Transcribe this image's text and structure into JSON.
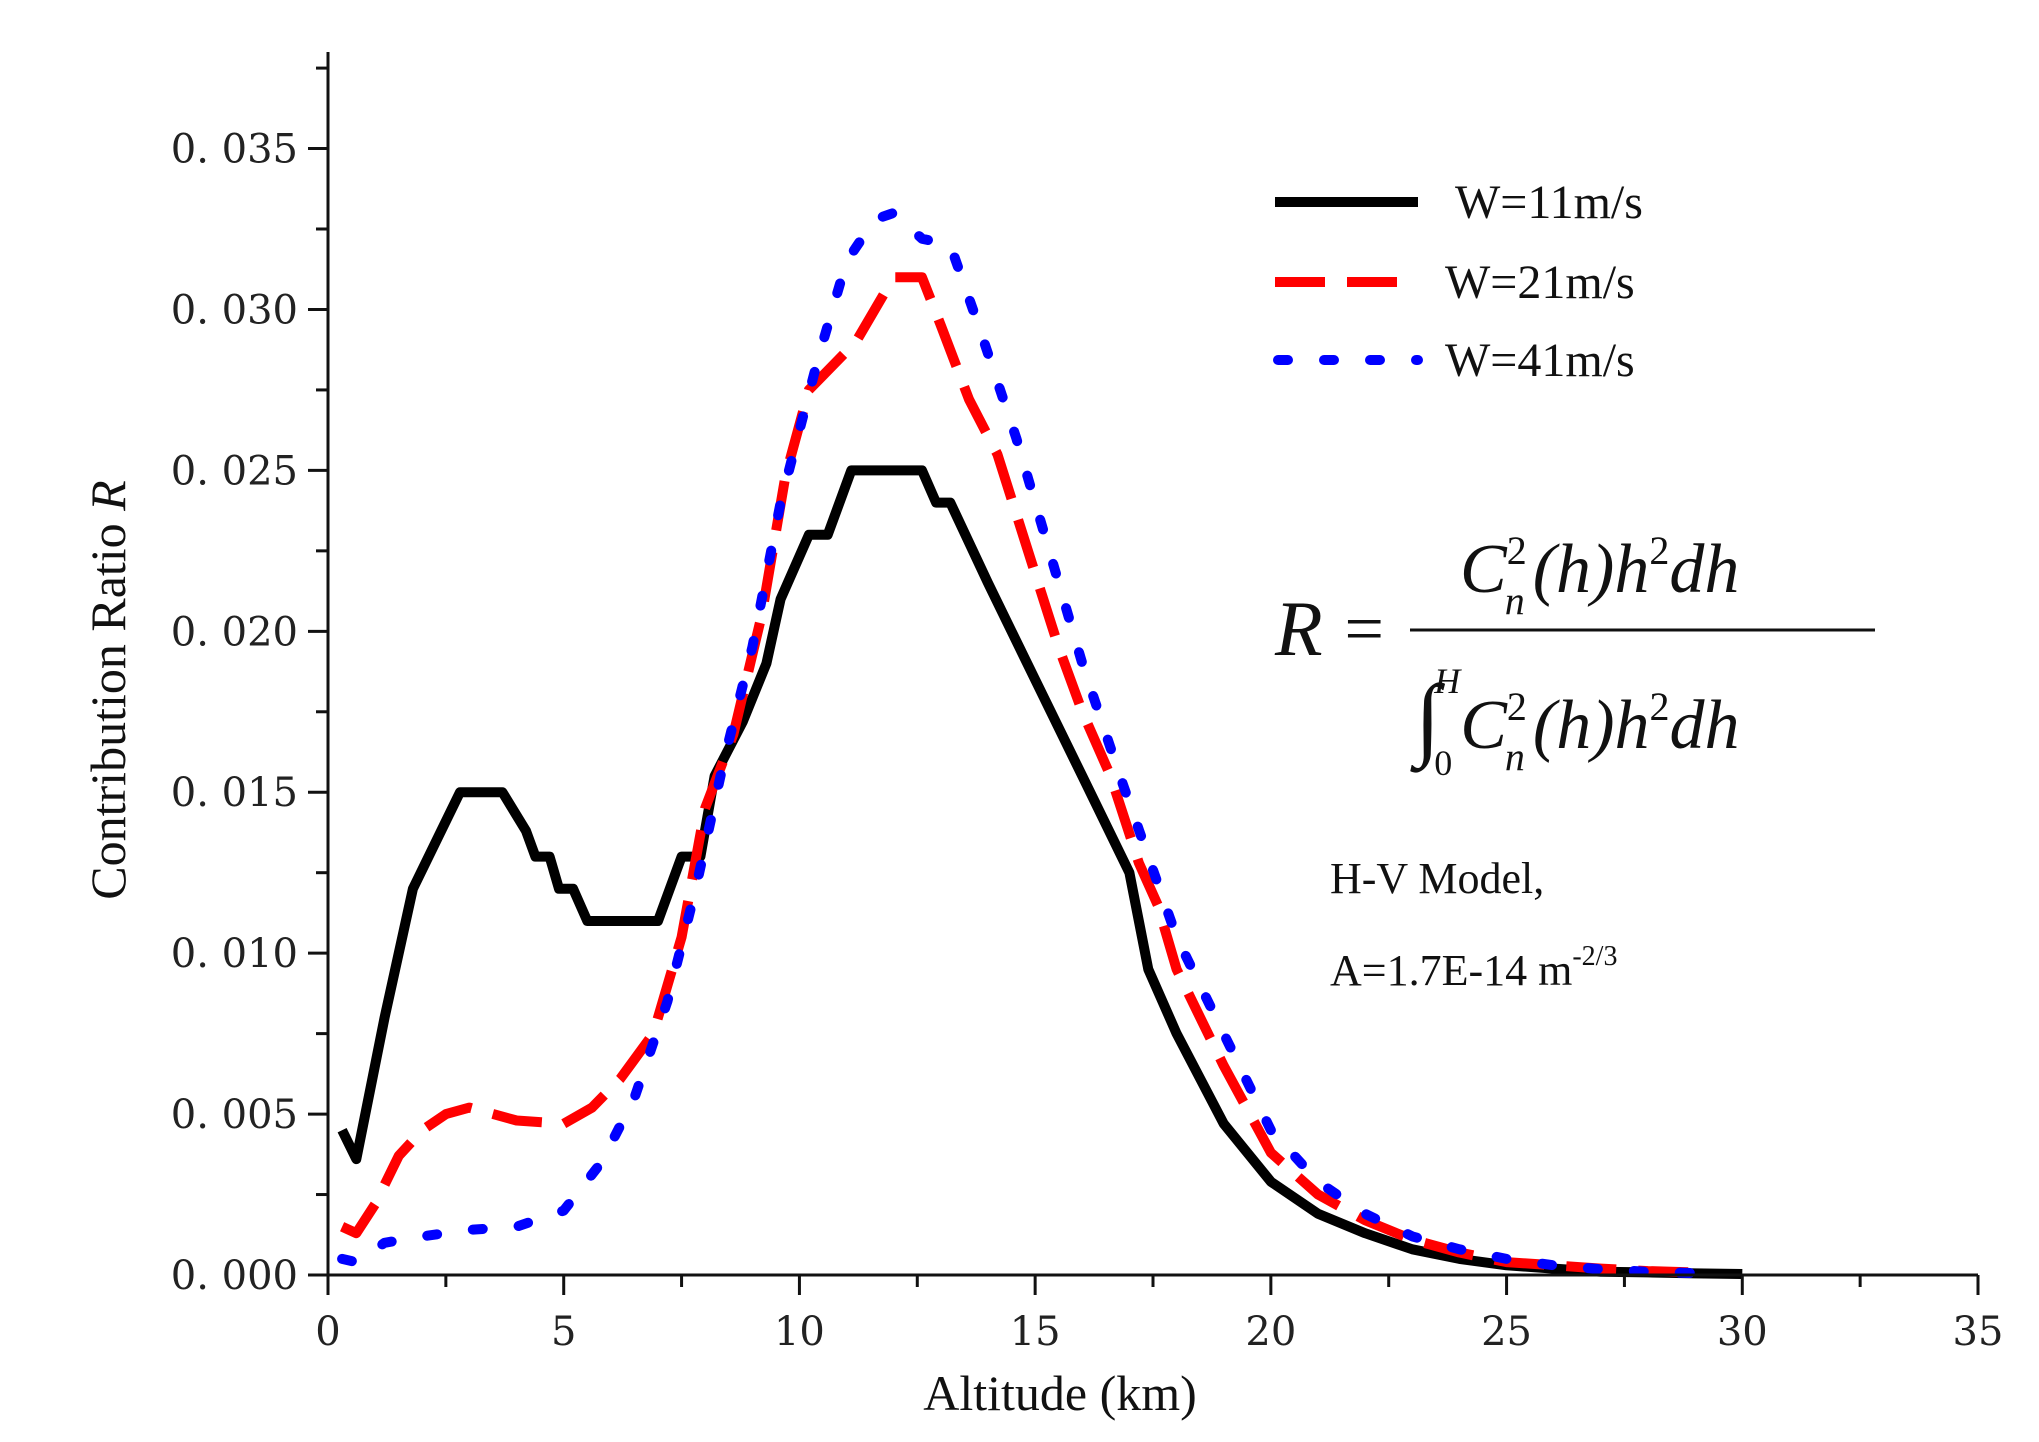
{
  "chart_data": {
    "type": "line",
    "title": "",
    "xlabel": "Altitude (km)",
    "ylabel": "Contribution Ratio ",
    "ylabel_var": "R",
    "xlim": [
      0,
      35
    ],
    "ylim": [
      0,
      0.038
    ],
    "x_ticks": [
      0,
      5,
      10,
      15,
      20,
      25,
      30,
      35
    ],
    "x_tick_labels": [
      "0",
      "5",
      "10",
      "15",
      "20",
      "25",
      "30",
      "35"
    ],
    "y_ticks": [
      0.0,
      0.005,
      0.01,
      0.015,
      0.02,
      0.025,
      0.03,
      0.035
    ],
    "y_tick_labels": [
      "0. 000",
      "0. 005",
      "0. 010",
      "0. 015",
      "0. 020",
      "0. 025",
      "0. 030",
      "0. 035"
    ],
    "grid": false,
    "legend_position": "top-right",
    "series": [
      {
        "name": "W=11m/s",
        "color": "#000000",
        "style": "solid",
        "points": [
          [
            0.3,
            0.0045
          ],
          [
            0.6,
            0.0036
          ],
          [
            1.2,
            0.008
          ],
          [
            1.8,
            0.012
          ],
          [
            2.4,
            0.0138
          ],
          [
            2.8,
            0.015
          ],
          [
            3.7,
            0.015
          ],
          [
            4.2,
            0.0138
          ],
          [
            4.4,
            0.013
          ],
          [
            4.7,
            0.013
          ],
          [
            4.9,
            0.012
          ],
          [
            5.2,
            0.012
          ],
          [
            5.5,
            0.011
          ],
          [
            7.0,
            0.011
          ],
          [
            7.5,
            0.013
          ],
          [
            7.9,
            0.013
          ],
          [
            8.2,
            0.0155
          ],
          [
            8.8,
            0.0172
          ],
          [
            9.3,
            0.019
          ],
          [
            9.6,
            0.021
          ],
          [
            10.2,
            0.023
          ],
          [
            10.6,
            0.023
          ],
          [
            11.1,
            0.025
          ],
          [
            12.6,
            0.025
          ],
          [
            12.9,
            0.024
          ],
          [
            13.2,
            0.024
          ],
          [
            14.0,
            0.0215
          ],
          [
            15.0,
            0.0185
          ],
          [
            16.0,
            0.0155
          ],
          [
            17.0,
            0.0125
          ],
          [
            17.4,
            0.0095
          ],
          [
            18.0,
            0.0075
          ],
          [
            19.0,
            0.0047
          ],
          [
            20.0,
            0.0029
          ],
          [
            21.0,
            0.0019
          ],
          [
            22.0,
            0.0013
          ],
          [
            23.0,
            0.0008
          ],
          [
            24.0,
            0.0005
          ],
          [
            25.0,
            0.0003
          ],
          [
            26.0,
            0.0002
          ],
          [
            27.0,
            0.0001
          ],
          [
            28.0,
            8e-05
          ],
          [
            29.0,
            5e-05
          ],
          [
            30.0,
            3e-05
          ]
        ]
      },
      {
        "name": "W=21m/s",
        "color": "#ff0000",
        "style": "dashed",
        "points": [
          [
            0.3,
            0.0015
          ],
          [
            0.6,
            0.0013
          ],
          [
            1.0,
            0.0022
          ],
          [
            1.5,
            0.0037
          ],
          [
            2.0,
            0.0045
          ],
          [
            2.5,
            0.005
          ],
          [
            3.0,
            0.0052
          ],
          [
            4.0,
            0.0048
          ],
          [
            5.0,
            0.0047
          ],
          [
            5.6,
            0.0052
          ],
          [
            6.2,
            0.0061
          ],
          [
            6.9,
            0.0075
          ],
          [
            7.5,
            0.0105
          ],
          [
            8.0,
            0.0145
          ],
          [
            8.6,
            0.0168
          ],
          [
            9.2,
            0.0205
          ],
          [
            9.7,
            0.0248
          ],
          [
            10.2,
            0.0275
          ],
          [
            11.2,
            0.029
          ],
          [
            12.0,
            0.031
          ],
          [
            12.6,
            0.031
          ],
          [
            13.0,
            0.0295
          ],
          [
            13.6,
            0.0272
          ],
          [
            14.2,
            0.0255
          ],
          [
            15.0,
            0.0218
          ],
          [
            15.5,
            0.0195
          ],
          [
            16.0,
            0.0175
          ],
          [
            16.6,
            0.0155
          ],
          [
            17.2,
            0.0128
          ],
          [
            17.6,
            0.0115
          ],
          [
            18.0,
            0.0095
          ],
          [
            19.0,
            0.0065
          ],
          [
            20.0,
            0.0038
          ],
          [
            21.0,
            0.0025
          ],
          [
            22.0,
            0.0017
          ],
          [
            23.0,
            0.0011
          ],
          [
            24.0,
            0.0007
          ],
          [
            25.0,
            0.0004
          ],
          [
            26.0,
            0.0003
          ],
          [
            27.0,
            0.0002
          ],
          [
            28.0,
            0.00012
          ],
          [
            29.0,
            8e-05
          ]
        ]
      },
      {
        "name": "W=41m/s",
        "color": "#0000ff",
        "style": "dotted",
        "points": [
          [
            0.3,
            0.0005
          ],
          [
            0.6,
            0.0004
          ],
          [
            1.2,
            0.001
          ],
          [
            2.0,
            0.0012
          ],
          [
            3.0,
            0.0014
          ],
          [
            4.0,
            0.0015
          ],
          [
            5.0,
            0.002
          ],
          [
            5.8,
            0.0035
          ],
          [
            6.5,
            0.0055
          ],
          [
            7.2,
            0.0085
          ],
          [
            7.8,
            0.012
          ],
          [
            8.4,
            0.016
          ],
          [
            9.0,
            0.0195
          ],
          [
            9.6,
            0.024
          ],
          [
            10.4,
            0.0285
          ],
          [
            11.0,
            0.0315
          ],
          [
            11.6,
            0.0328
          ],
          [
            12.0,
            0.033
          ],
          [
            12.6,
            0.0322
          ],
          [
            13.2,
            0.032
          ],
          [
            13.8,
            0.0295
          ],
          [
            14.6,
            0.026
          ],
          [
            15.2,
            0.023
          ],
          [
            16.0,
            0.019
          ],
          [
            16.8,
            0.0155
          ],
          [
            17.4,
            0.013
          ],
          [
            18.0,
            0.0105
          ],
          [
            19.0,
            0.0075
          ],
          [
            20.0,
            0.0045
          ],
          [
            21.0,
            0.0029
          ],
          [
            22.0,
            0.0019
          ],
          [
            23.0,
            0.0012
          ],
          [
            24.0,
            0.0008
          ],
          [
            25.0,
            0.0005
          ],
          [
            26.0,
            0.0003
          ],
          [
            27.0,
            0.00018
          ],
          [
            28.0,
            0.0001
          ],
          [
            29.0,
            6e-05
          ]
        ]
      }
    ],
    "annotations": {
      "formula": {
        "lhs": "R",
        "equals": "=",
        "numerator": "C_n^2(h)h^2dh",
        "denominator": "∫_0^H C_n^2(h)h^2dh"
      },
      "model_line1": "H-V Model,",
      "model_line2": "A=1.7E-14 m",
      "model_line2_sup": "-2/3"
    }
  }
}
